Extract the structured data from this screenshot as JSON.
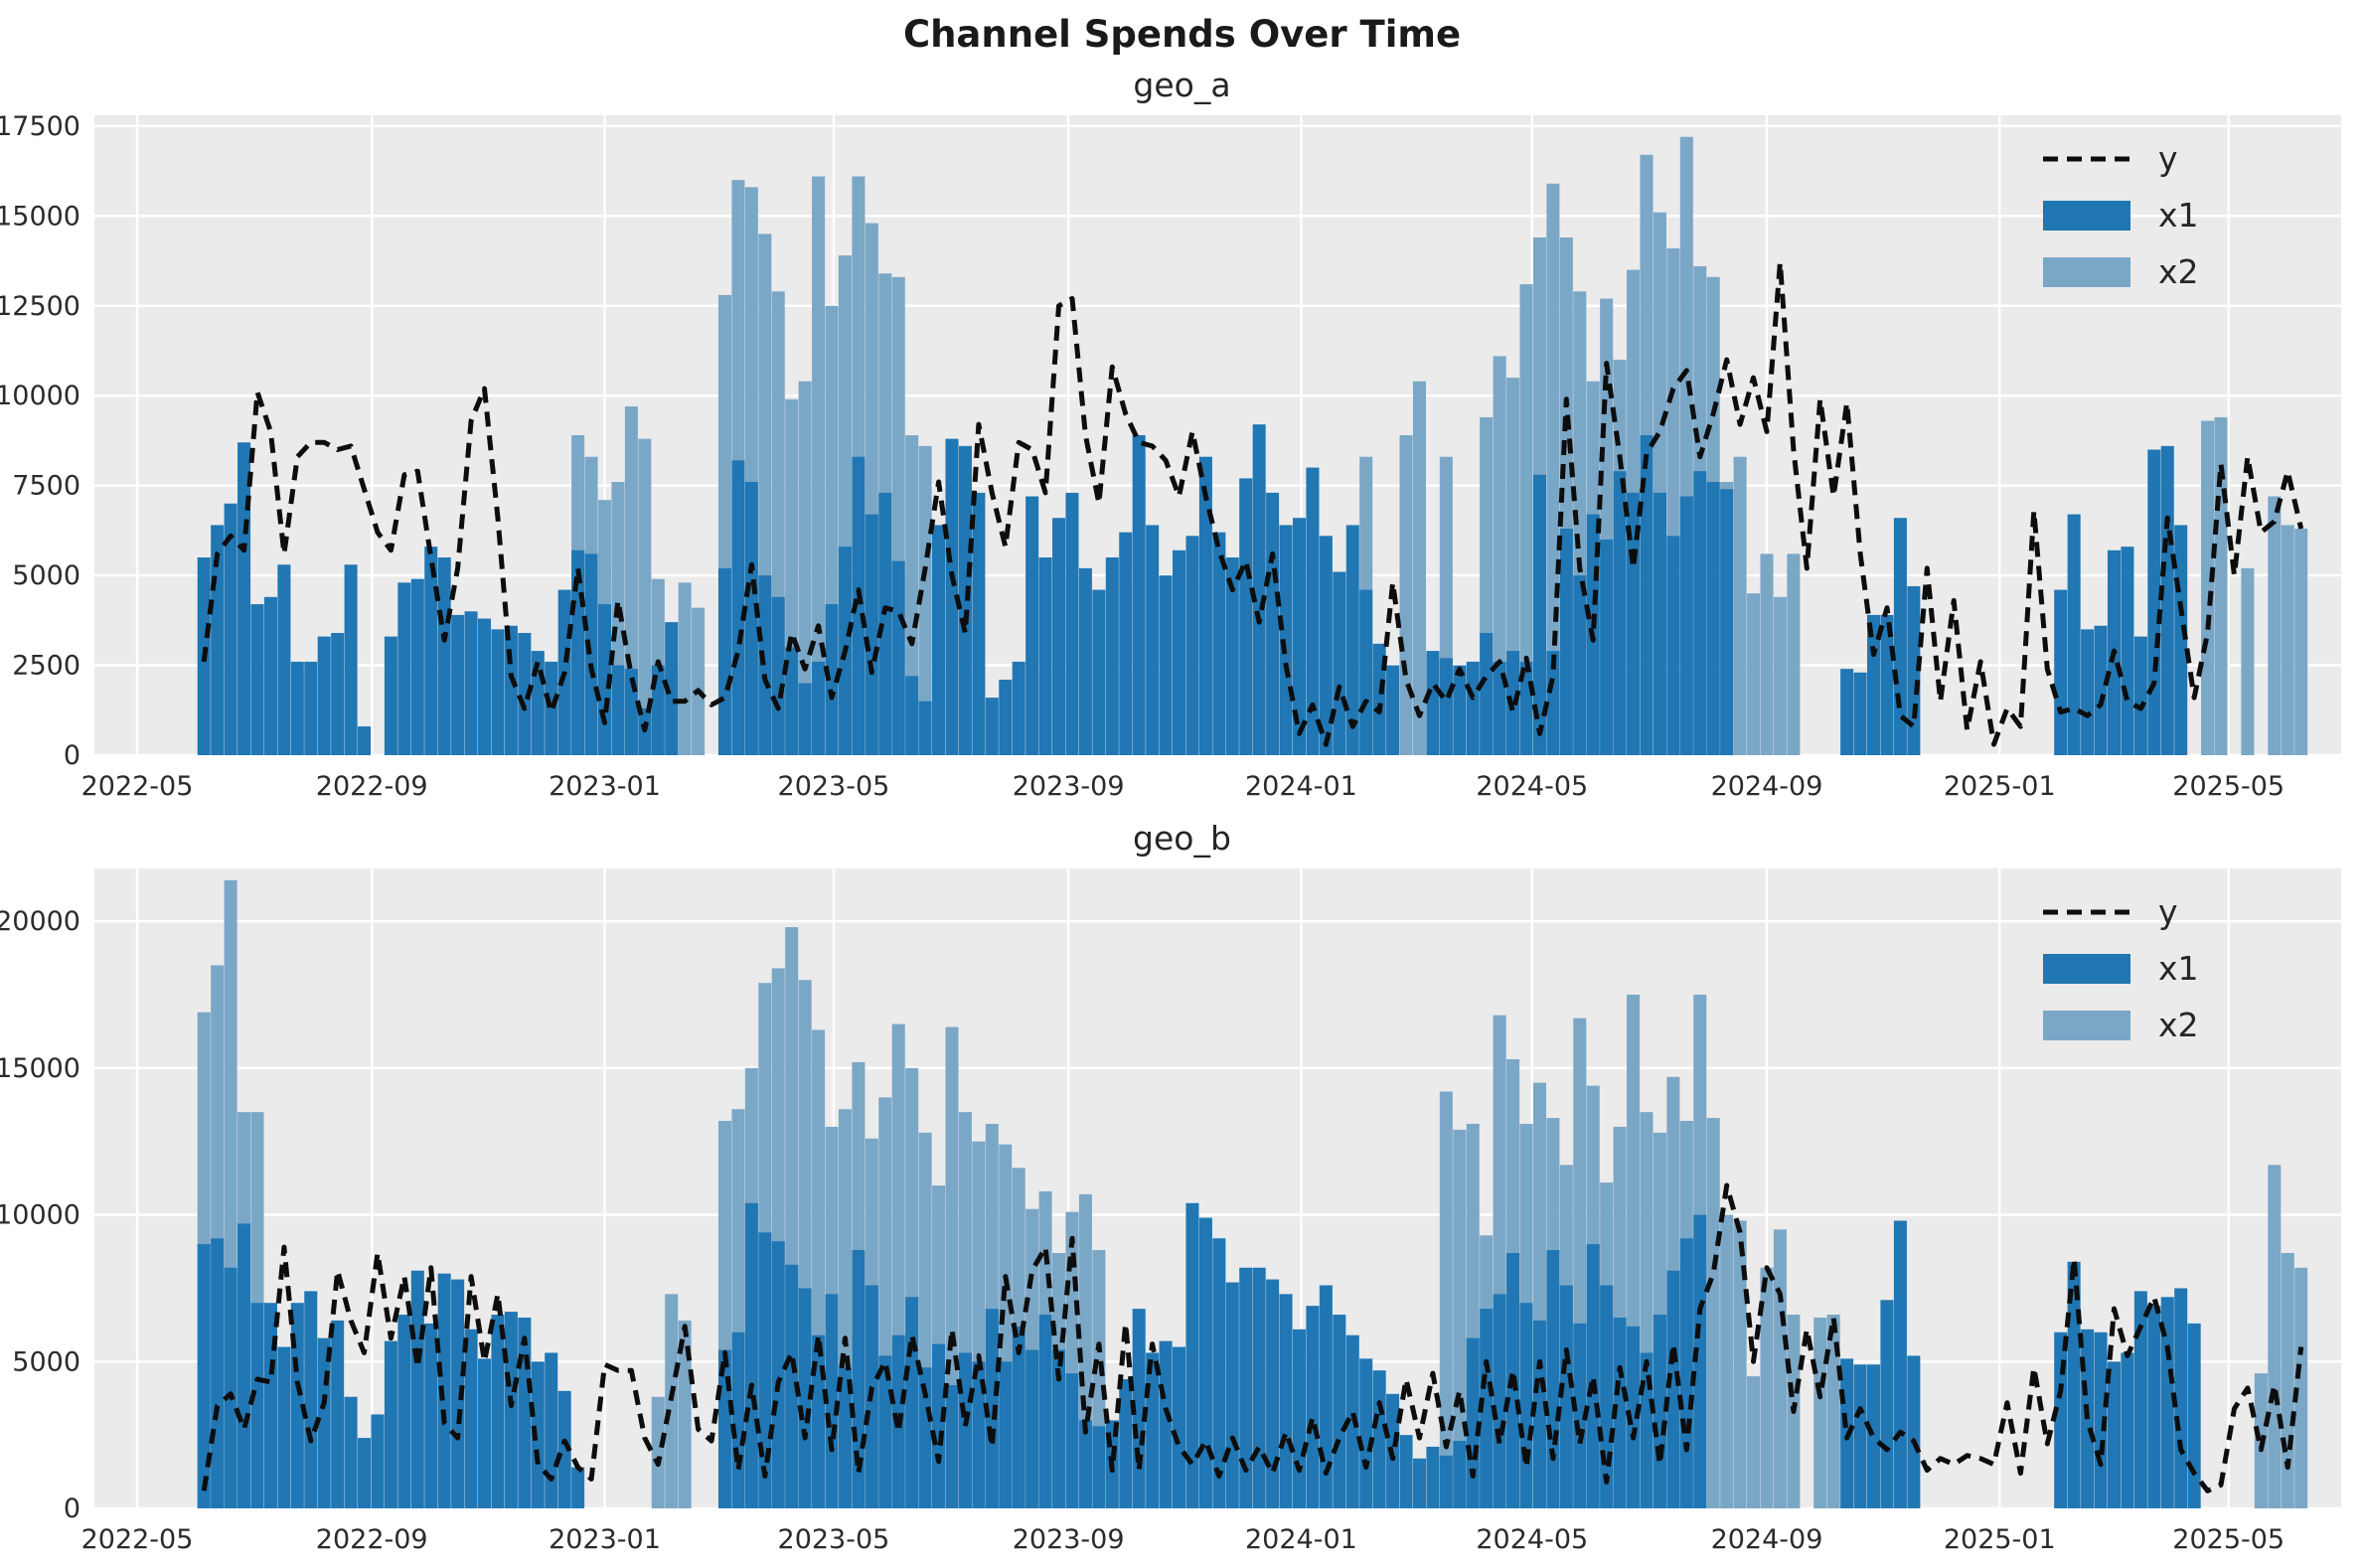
{
  "title": "Channel Spends Over Time",
  "colors": {
    "x1": "#2077B4",
    "x2": "#7BA7C7",
    "line": "#0d0d0d",
    "plot_bg": "#EBEBEB",
    "grid": "#FFFFFF",
    "text": "#262626",
    "tick_text": "#2b2b2b"
  },
  "legend": {
    "y_label": "y",
    "x1_label": "x1",
    "x2_label": "x2"
  },
  "chart_data": [
    {
      "type": "bar",
      "title": "geo_a",
      "start_date": "2022-06-05",
      "freq_days": 7,
      "ylim": [
        0,
        17800
      ],
      "yticks": [
        0,
        2500,
        5000,
        7500,
        10000,
        12500,
        15000,
        17500
      ],
      "xticks": [
        {
          "label": "2022-05",
          "date": "2022-05-01"
        },
        {
          "label": "2022-09",
          "date": "2022-09-01"
        },
        {
          "label": "2023-01",
          "date": "2023-01-01"
        },
        {
          "label": "2023-05",
          "date": "2023-05-01"
        },
        {
          "label": "2023-09",
          "date": "2023-09-01"
        },
        {
          "label": "2024-01",
          "date": "2024-01-01"
        },
        {
          "label": "2024-05",
          "date": "2024-05-01"
        },
        {
          "label": "2024-09",
          "date": "2024-09-01"
        },
        {
          "label": "2025-01",
          "date": "2025-01-01"
        },
        {
          "label": "2025-05",
          "date": "2025-05-01"
        }
      ],
      "legend_position": "upper right",
      "grid": true,
      "series": [
        {
          "name": "y",
          "type": "line",
          "values": [
            2600,
            5600,
            6100,
            5700,
            10100,
            9000,
            5600,
            8300,
            8700,
            8700,
            8500,
            8600,
            7400,
            6200,
            5700,
            7800,
            7900,
            5500,
            3200,
            5200,
            9300,
            10200,
            6600,
            2200,
            1300,
            2600,
            1200,
            2300,
            5200,
            2400,
            900,
            4300,
            2200,
            700,
            2600,
            1500,
            1500,
            1800,
            1400,
            1600,
            2900,
            5300,
            2100,
            1300,
            3400,
            2400,
            3600,
            1600,
            2900,
            4600,
            2300,
            4100,
            4000,
            3100,
            5200,
            7600,
            5000,
            3400,
            9200,
            7300,
            5800,
            8700,
            8500,
            7300,
            12500,
            12700,
            8900,
            7000,
            10800,
            9500,
            8700,
            8600,
            8200,
            7200,
            9000,
            7200,
            5700,
            4600,
            5400,
            3700,
            5600,
            2500,
            600,
            1400,
            300,
            1900,
            800,
            1500,
            1200,
            4800,
            2100,
            1100,
            2000,
            1500,
            2400,
            1600,
            2200,
            2600,
            1200,
            2700,
            600,
            2200,
            9900,
            5200,
            3200,
            10900,
            8300,
            5200,
            8400,
            9000,
            10200,
            10700,
            8300,
            9500,
            11000,
            9200,
            10500,
            9000,
            13700,
            8500,
            5200,
            9900,
            7200,
            9800,
            5600,
            2800,
            4100,
            1100,
            800,
            5200,
            1500,
            4300,
            700,
            2600,
            300,
            1300,
            800,
            6800,
            2400,
            1200,
            1300,
            1100,
            1400,
            2900,
            1500,
            1300,
            2000,
            6600,
            4100,
            1600,
            3400,
            8100,
            5000,
            8300,
            6200,
            6500,
            7900,
            6300
          ]
        },
        {
          "name": "x1",
          "type": "bar",
          "values": [
            5500,
            6400,
            7000,
            8700,
            4200,
            4400,
            5300,
            2600,
            2600,
            3300,
            3400,
            5300,
            800,
            0,
            3300,
            4800,
            4900,
            5800,
            5500,
            3900,
            4000,
            3800,
            3500,
            3600,
            3400,
            2900,
            2600,
            4600,
            5700,
            5600,
            4200,
            2500,
            2400,
            1300,
            2500,
            3700,
            0,
            0,
            0,
            5200,
            8200,
            7600,
            5000,
            4400,
            3000,
            2000,
            2600,
            4200,
            5800,
            8300,
            6700,
            7300,
            5400,
            2200,
            1500,
            6400,
            8800,
            8600,
            7300,
            1600,
            2100,
            2600,
            7200,
            5500,
            6600,
            7300,
            5200,
            4600,
            5500,
            6200,
            8900,
            6400,
            5000,
            5700,
            6100,
            8300,
            6200,
            5500,
            7700,
            9200,
            7300,
            6400,
            6600,
            8000,
            6100,
            5100,
            6400,
            4600,
            3100,
            2500,
            0,
            0,
            2900,
            2700,
            2500,
            2600,
            3400,
            2600,
            2900,
            2600,
            7800,
            2900,
            6300,
            5000,
            6700,
            6000,
            7900,
            7300,
            8900,
            7300,
            6100,
            7200,
            7900,
            7600,
            7400,
            0,
            0,
            0,
            0,
            0,
            0,
            0,
            0,
            2400,
            2300,
            3900,
            3900,
            6600,
            4700,
            0,
            0,
            0,
            0,
            0,
            0,
            0,
            0,
            0,
            0,
            4600,
            6700,
            3500,
            3600,
            5700,
            5800,
            3300,
            8500,
            8600,
            6400,
            0,
            0,
            0,
            0,
            0,
            0,
            0,
            0,
            0
          ]
        },
        {
          "name": "x2",
          "type": "bar",
          "values": [
            0,
            0,
            0,
            0,
            0,
            0,
            0,
            0,
            0,
            0,
            0,
            0,
            0,
            0,
            0,
            0,
            0,
            0,
            0,
            0,
            0,
            0,
            0,
            0,
            0,
            0,
            0,
            0,
            8900,
            8300,
            7100,
            7600,
            9700,
            8800,
            4900,
            2400,
            4800,
            4100,
            0,
            12800,
            16000,
            15800,
            14500,
            12900,
            9900,
            10400,
            16100,
            12500,
            13900,
            16100,
            14800,
            13400,
            13300,
            8900,
            8600,
            0,
            0,
            0,
            0,
            0,
            0,
            0,
            0,
            0,
            0,
            0,
            0,
            0,
            0,
            0,
            0,
            0,
            0,
            0,
            0,
            0,
            0,
            0,
            0,
            0,
            0,
            0,
            0,
            0,
            0,
            0,
            0,
            8300,
            0,
            0,
            8900,
            10400,
            0,
            8300,
            0,
            0,
            9400,
            11100,
            10500,
            13100,
            14400,
            15900,
            14400,
            12900,
            10400,
            12700,
            11000,
            13500,
            16700,
            15100,
            14100,
            17200,
            13600,
            13300,
            7600,
            8300,
            4500,
            5600,
            4400,
            5600,
            0,
            0,
            0,
            0,
            0,
            0,
            0,
            0,
            0,
            0,
            0,
            0,
            0,
            0,
            0,
            0,
            0,
            0,
            0,
            0,
            0,
            0,
            0,
            0,
            0,
            0,
            0,
            0,
            0,
            0,
            9300,
            9400,
            0,
            5200,
            0,
            7200,
            6400,
            6300
          ]
        }
      ]
    },
    {
      "type": "bar",
      "title": "geo_b",
      "start_date": "2022-06-05",
      "freq_days": 7,
      "ylim": [
        0,
        21800
      ],
      "yticks": [
        0,
        5000,
        10000,
        15000,
        20000
      ],
      "xticks": [
        {
          "label": "2022-05",
          "date": "2022-05-01"
        },
        {
          "label": "2022-09",
          "date": "2022-09-01"
        },
        {
          "label": "2023-01",
          "date": "2023-01-01"
        },
        {
          "label": "2023-05",
          "date": "2023-05-01"
        },
        {
          "label": "2023-09",
          "date": "2023-09-01"
        },
        {
          "label": "2024-01",
          "date": "2024-01-01"
        },
        {
          "label": "2024-05",
          "date": "2024-05-01"
        },
        {
          "label": "2024-09",
          "date": "2024-09-01"
        },
        {
          "label": "2025-01",
          "date": "2025-01-01"
        },
        {
          "label": "2025-05",
          "date": "2025-05-01"
        }
      ],
      "legend_position": "upper right",
      "grid": true,
      "series": [
        {
          "name": "y",
          "type": "line",
          "values": [
            600,
            3500,
            3900,
            2700,
            4400,
            4300,
            8900,
            4300,
            2300,
            3600,
            8100,
            6400,
            5300,
            8700,
            5800,
            7900,
            4800,
            8200,
            2900,
            2400,
            7900,
            5000,
            7300,
            3500,
            5800,
            1500,
            1000,
            2300,
            1400,
            1000,
            4900,
            4700,
            4700,
            2400,
            1500,
            3800,
            6200,
            2700,
            2300,
            5300,
            1300,
            4200,
            1100,
            4300,
            5300,
            2400,
            5900,
            2000,
            5800,
            1200,
            4100,
            5000,
            2600,
            5900,
            3900,
            1600,
            6100,
            2800,
            5200,
            2100,
            7900,
            5300,
            8100,
            8900,
            4400,
            9200,
            2600,
            5600,
            1300,
            6300,
            1300,
            5600,
            3400,
            2100,
            1500,
            2300,
            1100,
            2400,
            1300,
            2100,
            1200,
            2600,
            1300,
            3100,
            1200,
            2400,
            3300,
            1400,
            3600,
            1700,
            4400,
            2400,
            4600,
            2100,
            4000,
            1100,
            5000,
            2200,
            4700,
            1400,
            5000,
            1700,
            5400,
            2200,
            4500,
            900,
            4800,
            2400,
            5000,
            1500,
            5600,
            2000,
            6800,
            8000,
            11000,
            9400,
            5000,
            8200,
            7300,
            3300,
            6100,
            3800,
            6500,
            2400,
            3400,
            2400,
            2000,
            2600,
            2300,
            1300,
            1700,
            1500,
            1800,
            1700,
            1500,
            3600,
            1200,
            4800,
            2200,
            4000,
            8500,
            3000,
            1500,
            6800,
            5200,
            6200,
            7200,
            5500,
            2000,
            1200,
            600,
            800,
            3400,
            4100,
            2000,
            4200,
            1400,
            5500
          ]
        },
        {
          "name": "x1",
          "type": "bar",
          "values": [
            9000,
            9200,
            8200,
            9700,
            7000,
            7000,
            5500,
            7000,
            7400,
            5800,
            6400,
            3800,
            2400,
            3200,
            5700,
            6600,
            8100,
            6300,
            8000,
            7800,
            6100,
            5100,
            6600,
            6700,
            6500,
            5000,
            5300,
            4000,
            1400,
            0,
            0,
            0,
            0,
            0,
            0,
            0,
            0,
            0,
            0,
            5400,
            6000,
            10400,
            9400,
            9100,
            8300,
            7500,
            5900,
            7300,
            4800,
            8800,
            7600,
            5200,
            5900,
            7200,
            4800,
            5600,
            4200,
            5300,
            5000,
            6800,
            5000,
            6200,
            5400,
            6600,
            5400,
            4600,
            3000,
            2800,
            3000,
            4400,
            6800,
            5300,
            5700,
            5500,
            10400,
            9900,
            9200,
            7700,
            8200,
            8200,
            7800,
            7300,
            6100,
            6900,
            7600,
            6600,
            5900,
            5100,
            4700,
            3900,
            2500,
            1700,
            2100,
            1800,
            2300,
            5800,
            6800,
            7300,
            8700,
            7000,
            6400,
            8800,
            7600,
            6300,
            9000,
            7600,
            6500,
            6200,
            5300,
            6600,
            8100,
            9200,
            10000,
            0,
            0,
            0,
            0,
            0,
            0,
            0,
            0,
            0,
            0,
            5100,
            4900,
            4900,
            7100,
            9800,
            5200,
            0,
            0,
            0,
            0,
            0,
            0,
            0,
            0,
            0,
            0,
            6000,
            8400,
            6100,
            6000,
            5000,
            5300,
            7400,
            6900,
            7200,
            7500,
            6300,
            0,
            0,
            0,
            0,
            0,
            0,
            0,
            0
          ]
        },
        {
          "name": "x2",
          "type": "bar",
          "values": [
            16900,
            18500,
            21400,
            13500,
            13500,
            0,
            0,
            0,
            0,
            0,
            0,
            0,
            0,
            0,
            0,
            0,
            0,
            0,
            0,
            0,
            0,
            0,
            0,
            0,
            0,
            0,
            0,
            0,
            0,
            0,
            0,
            0,
            0,
            0,
            3800,
            7300,
            6400,
            0,
            0,
            13200,
            13600,
            15000,
            17900,
            18400,
            19800,
            18000,
            16300,
            13000,
            13600,
            15200,
            12600,
            14000,
            16500,
            15000,
            12800,
            11000,
            16400,
            13500,
            12500,
            13100,
            12400,
            11600,
            10200,
            10800,
            8700,
            10100,
            10700,
            8800,
            0,
            0,
            0,
            0,
            0,
            0,
            0,
            0,
            0,
            0,
            0,
            0,
            0,
            0,
            0,
            0,
            0,
            0,
            0,
            0,
            0,
            0,
            0,
            0,
            0,
            14200,
            12900,
            13100,
            9300,
            16800,
            15300,
            13100,
            14500,
            13300,
            11700,
            16700,
            14400,
            11100,
            13000,
            17500,
            13500,
            12800,
            14700,
            13200,
            17500,
            13300,
            10000,
            9800,
            4500,
            8200,
            9500,
            6600,
            0,
            6500,
            6600,
            0,
            0,
            0,
            0,
            0,
            0,
            0,
            0,
            0,
            0,
            0,
            0,
            0,
            0,
            0,
            0,
            0,
            0,
            0,
            0,
            0,
            0,
            0,
            0,
            0,
            0,
            0,
            0,
            0,
            0,
            0,
            4600,
            11700,
            8700,
            8200
          ]
        }
      ]
    }
  ]
}
